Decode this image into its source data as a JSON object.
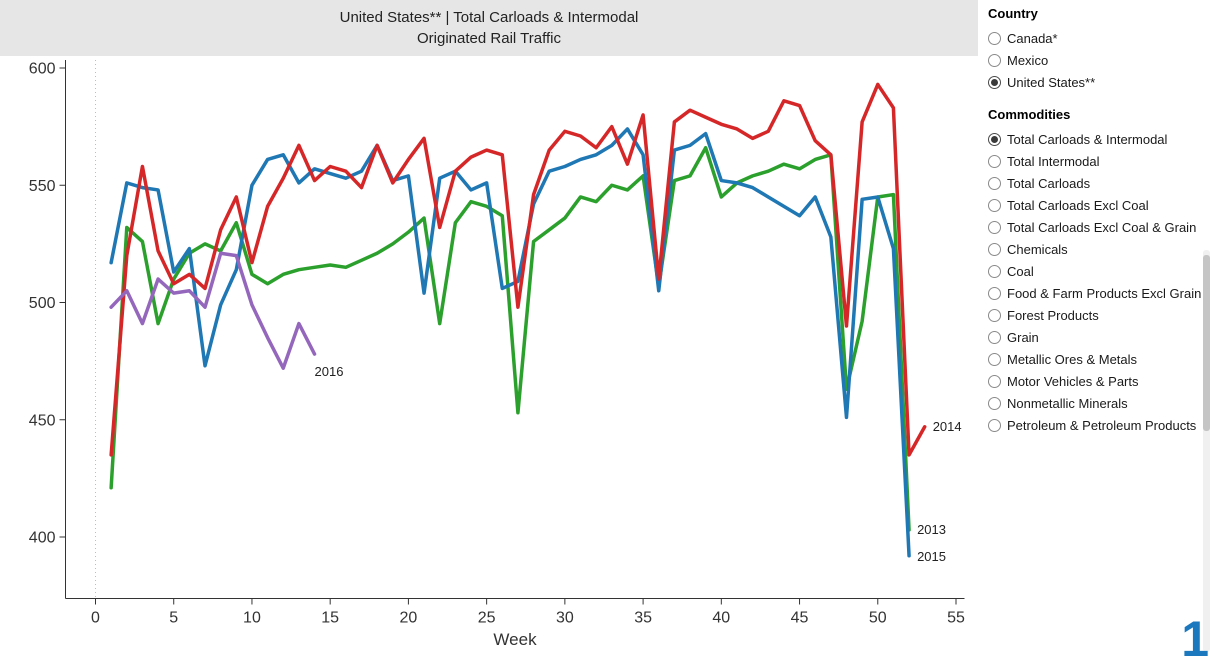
{
  "title": {
    "line1": "United States** | Total Carloads & Intermodal",
    "line2": "Originated Rail Traffic"
  },
  "panels": {
    "country": {
      "title": "Country",
      "options": [
        {
          "label": "Canada*",
          "selected": false
        },
        {
          "label": "Mexico",
          "selected": false
        },
        {
          "label": "United States**",
          "selected": true
        }
      ]
    },
    "commodities": {
      "title": "Commodities",
      "options": [
        {
          "label": "Total Carloads & Intermodal",
          "selected": true
        },
        {
          "label": "Total Intermodal",
          "selected": false
        },
        {
          "label": "Total Carloads",
          "selected": false
        },
        {
          "label": "Total Carloads Excl Coal",
          "selected": false
        },
        {
          "label": "Total Carloads Excl Coal & Grain",
          "selected": false
        },
        {
          "label": "Chemicals",
          "selected": false
        },
        {
          "label": "Coal",
          "selected": false
        },
        {
          "label": "Food & Farm Products Excl Grain",
          "selected": false
        },
        {
          "label": "Forest Products",
          "selected": false
        },
        {
          "label": "Grain",
          "selected": false
        },
        {
          "label": "Metallic Ores & Metals",
          "selected": false
        },
        {
          "label": "Motor Vehicles & Parts",
          "selected": false
        },
        {
          "label": "Nonmetallic Minerals",
          "selected": false
        },
        {
          "label": "Petroleum & Petroleum Products",
          "selected": false
        }
      ]
    }
  },
  "page_indicator": "1",
  "chart_data": {
    "type": "line",
    "title": "United States** | Total Carloads & Intermodal — Originated Rail Traffic",
    "xlabel": "Week",
    "ylabel": "",
    "x_ticks": [
      0,
      5,
      10,
      15,
      20,
      25,
      30,
      35,
      40,
      45,
      50,
      55
    ],
    "y_ticks": [
      400,
      450,
      500,
      550,
      600
    ],
    "xlim": [
      0,
      55
    ],
    "ylim": [
      400,
      600
    ],
    "grid": false,
    "legend_position": "line-end-labels",
    "series": [
      {
        "name": "2013",
        "color": "#2ca02c",
        "start_week": 1,
        "label_dx": 8,
        "label_dy": 4,
        "values": [
          421,
          532,
          526,
          491,
          510,
          521,
          525,
          522,
          534,
          512,
          508,
          512,
          514,
          515,
          516,
          515,
          518,
          521,
          525,
          530,
          536,
          491,
          534,
          543,
          541,
          537,
          453,
          526,
          531,
          536,
          545,
          543,
          550,
          548,
          554,
          507,
          552,
          554,
          566,
          545,
          551,
          554,
          556,
          559,
          557,
          561,
          563,
          463,
          492,
          545,
          546,
          403
        ]
      },
      {
        "name": "2015",
        "color": "#1f77b4",
        "start_week": 1,
        "label_dx": 8,
        "label_dy": 5,
        "values": [
          517,
          551,
          549,
          548,
          513,
          523,
          473,
          499,
          514,
          550,
          561,
          563,
          551,
          557,
          555,
          553,
          556,
          567,
          552,
          554,
          504,
          553,
          556,
          548,
          551,
          506,
          509,
          542,
          556,
          558,
          561,
          563,
          567,
          574,
          563,
          505,
          565,
          567,
          572,
          552,
          551,
          549,
          545,
          541,
          537,
          545,
          528,
          451,
          544,
          545,
          523,
          392
        ]
      },
      {
        "name": "2014",
        "color": "#d62728",
        "start_week": 1,
        "label_dx": 8,
        "label_dy": 4,
        "values": [
          435,
          520,
          558,
          522,
          508,
          512,
          506,
          531,
          545,
          517,
          541,
          553,
          567,
          552,
          558,
          556,
          549,
          567,
          551,
          561,
          570,
          532,
          556,
          562,
          565,
          563,
          498,
          546,
          565,
          573,
          571,
          566,
          575,
          559,
          580,
          510,
          577,
          582,
          579,
          576,
          574,
          570,
          573,
          586,
          584,
          569,
          563,
          490,
          577,
          593,
          583,
          435,
          447
        ]
      },
      {
        "name": "2016",
        "color": "#9467bd",
        "start_week": 1,
        "label_dx": 0,
        "label_dy": 22,
        "values": [
          498,
          505,
          491,
          510,
          504,
          505,
          498,
          521,
          520,
          499,
          485,
          472,
          491,
          478
        ]
      }
    ]
  }
}
